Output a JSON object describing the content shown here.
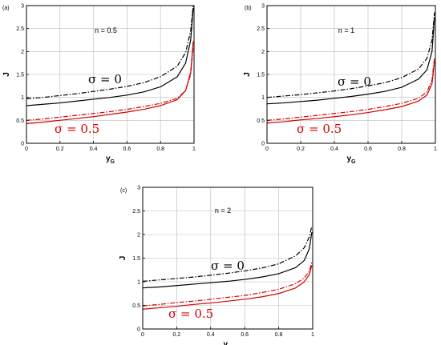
{
  "chart_data": [
    {
      "type": "line",
      "panel_label": "(a)",
      "annotation": "n = 0.5",
      "xlabel_main": "y",
      "xlabel_sub": "G",
      "ylabel": "J",
      "xlim": [
        0,
        1
      ],
      "ylim": [
        0,
        3
      ],
      "xticks": [
        "0",
        "0.2",
        "0.4",
        "0.6",
        "0.8",
        "1"
      ],
      "yticks": [
        "0",
        "0.5",
        "1",
        "1.5",
        "2",
        "2.5",
        "3"
      ],
      "grid": true,
      "curve_labels": [
        "σ = 0",
        "σ = 0.5"
      ],
      "x": [
        0,
        0.1,
        0.2,
        0.3,
        0.4,
        0.5,
        0.6,
        0.7,
        0.8,
        0.9,
        0.95,
        0.98,
        0.995
      ],
      "series": [
        {
          "color": "#000000",
          "dash": "solid",
          "values": [
            0.82,
            0.85,
            0.88,
            0.92,
            0.96,
            1.0,
            1.05,
            1.12,
            1.23,
            1.45,
            1.75,
            2.25,
            2.95
          ]
        },
        {
          "color": "#000000",
          "dash": "dashdot",
          "values": [
            0.97,
            1.0,
            1.04,
            1.08,
            1.13,
            1.18,
            1.24,
            1.32,
            1.45,
            1.68,
            1.98,
            2.45,
            3.0
          ]
        },
        {
          "color": "#d40000",
          "dash": "solid",
          "values": [
            0.43,
            0.46,
            0.5,
            0.54,
            0.58,
            0.63,
            0.68,
            0.74,
            0.82,
            0.95,
            1.15,
            1.55,
            2.22
          ]
        },
        {
          "color": "#d40000",
          "dash": "dashdot",
          "values": [
            0.5,
            0.53,
            0.57,
            0.61,
            0.65,
            0.69,
            0.74,
            0.8,
            0.87,
            0.98,
            1.15,
            1.5,
            2.12
          ]
        }
      ]
    },
    {
      "type": "line",
      "panel_label": "(b)",
      "annotation": "n = 1",
      "xlabel_main": "y",
      "xlabel_sub": "G",
      "ylabel": "J",
      "xlim": [
        0,
        1
      ],
      "ylim": [
        0,
        3
      ],
      "xticks": [
        "0",
        "0.2",
        "0.4",
        "0.6",
        "0.8",
        "1"
      ],
      "yticks": [
        "0",
        "0.5",
        "1",
        "1.5",
        "2",
        "2.5",
        "3"
      ],
      "grid": true,
      "curve_labels": [
        "σ = 0",
        "σ = 0.5"
      ],
      "x": [
        0,
        0.1,
        0.2,
        0.3,
        0.4,
        0.5,
        0.6,
        0.7,
        0.8,
        0.9,
        0.95,
        0.98,
        0.995
      ],
      "series": [
        {
          "color": "#000000",
          "dash": "solid",
          "values": [
            0.86,
            0.88,
            0.91,
            0.94,
            0.98,
            1.02,
            1.07,
            1.13,
            1.22,
            1.4,
            1.6,
            2.0,
            2.75
          ]
        },
        {
          "color": "#000000",
          "dash": "dashdot",
          "values": [
            1.0,
            1.03,
            1.06,
            1.1,
            1.14,
            1.19,
            1.25,
            1.32,
            1.43,
            1.62,
            1.85,
            2.25,
            2.85
          ]
        },
        {
          "color": "#d40000",
          "dash": "solid",
          "values": [
            0.44,
            0.47,
            0.51,
            0.54,
            0.58,
            0.62,
            0.67,
            0.73,
            0.8,
            0.92,
            1.05,
            1.3,
            1.78
          ]
        },
        {
          "color": "#d40000",
          "dash": "dashdot",
          "values": [
            0.5,
            0.53,
            0.57,
            0.61,
            0.65,
            0.69,
            0.74,
            0.8,
            0.87,
            0.98,
            1.12,
            1.38,
            1.88
          ]
        }
      ]
    },
    {
      "type": "line",
      "panel_label": "(c)",
      "annotation": "n = 2",
      "xlabel_main": "y",
      "xlabel_sub": "G",
      "ylabel": "J",
      "xlim": [
        0,
        1
      ],
      "ylim": [
        0,
        3
      ],
      "xticks": [
        "0",
        "0.2",
        "0.4",
        "0.6",
        "0.8",
        "1"
      ],
      "yticks": [
        "0",
        "0.5",
        "1",
        "1.5",
        "2",
        "2.5",
        "3"
      ],
      "grid": true,
      "curve_labels": [
        "σ = 0",
        "σ = 0.5"
      ],
      "x": [
        0,
        0.1,
        0.2,
        0.3,
        0.4,
        0.5,
        0.6,
        0.7,
        0.8,
        0.9,
        0.95,
        0.98,
        0.995
      ],
      "series": [
        {
          "color": "#000000",
          "dash": "solid",
          "values": [
            0.87,
            0.89,
            0.92,
            0.95,
            0.98,
            1.01,
            1.05,
            1.1,
            1.17,
            1.3,
            1.45,
            1.7,
            2.05
          ]
        },
        {
          "color": "#000000",
          "dash": "dashdot",
          "values": [
            1.01,
            1.04,
            1.07,
            1.1,
            1.14,
            1.18,
            1.23,
            1.29,
            1.38,
            1.55,
            1.72,
            1.95,
            2.18
          ]
        },
        {
          "color": "#d40000",
          "dash": "solid",
          "values": [
            0.42,
            0.45,
            0.48,
            0.52,
            0.55,
            0.59,
            0.63,
            0.68,
            0.75,
            0.87,
            1.0,
            1.15,
            1.35
          ]
        },
        {
          "color": "#d40000",
          "dash": "dashdot",
          "values": [
            0.49,
            0.52,
            0.56,
            0.59,
            0.63,
            0.67,
            0.71,
            0.77,
            0.84,
            0.96,
            1.08,
            1.22,
            1.42
          ]
        }
      ]
    }
  ]
}
